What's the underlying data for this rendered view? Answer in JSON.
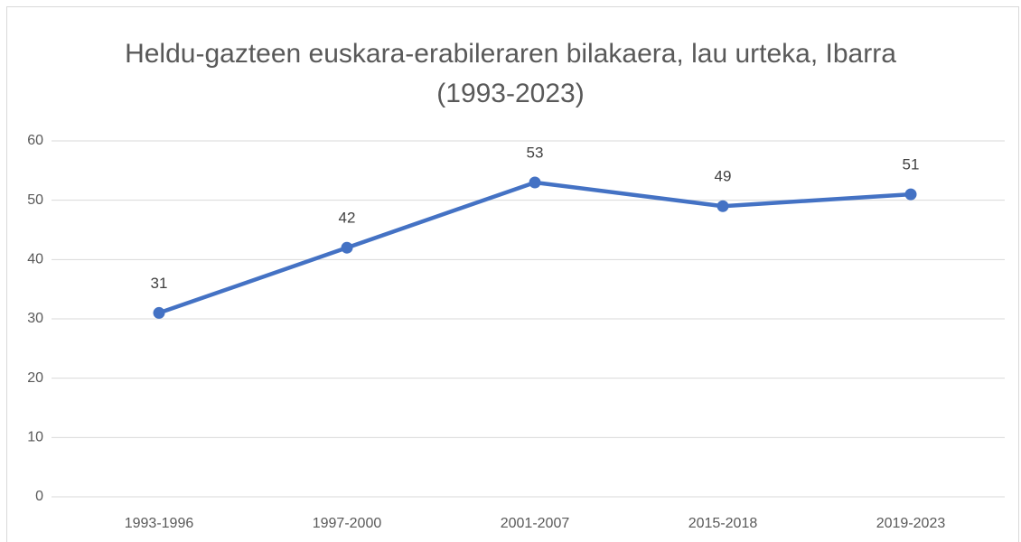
{
  "chart_data": {
    "type": "line",
    "title": "Heldu-gazteen euskara-erabileraren bilakaera, lau urteka, Ibarra (1993-2023)",
    "categories": [
      "1993-1996",
      "1997-2000",
      "2001-2007",
      "2015-2018",
      "2019-2023"
    ],
    "series": [
      {
        "name": "Ibarra",
        "color": "#4472c4",
        "values": [
          31,
          42,
          53,
          49,
          51
        ]
      }
    ],
    "ylim": [
      0,
      60
    ],
    "yticks": [
      0,
      10,
      20,
      30,
      40,
      50,
      60
    ],
    "grid": true,
    "data_labels": true
  }
}
